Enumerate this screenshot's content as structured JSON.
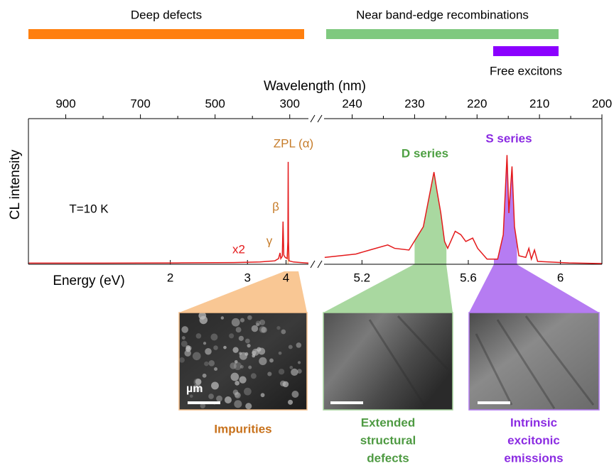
{
  "chart_data": {
    "type": "line",
    "x_label": "Wavelength (nm)",
    "x2_label": "Energy (eV)",
    "y_label": "CL intensity",
    "ylim": [
      0,
      1.28
    ],
    "color": "#e41a1c",
    "panels": [
      {
        "xlim": [
          1000,
          250
        ],
        "xticks": [
          900,
          700,
          500,
          300
        ],
        "xminor": [
          800,
          600,
          400
        ],
        "energy_ticks": [
          2,
          3,
          4
        ],
        "x": [
          1000,
          800,
          600,
          450,
          380,
          340,
          330,
          326,
          324,
          320,
          318,
          316,
          312,
          307,
          305,
          304.2,
          303.4,
          302,
          290,
          270,
          250
        ],
        "values": [
          0.01,
          0.01,
          0.012,
          0.015,
          0.02,
          0.03,
          0.05,
          0.1,
          0.05,
          0.07,
          0.375,
          0.08,
          0.06,
          0.05,
          0.2,
          0.9,
          0.2,
          0.03,
          0.02,
          0.015,
          0.01
        ]
      },
      {
        "xlim": [
          244.5,
          200
        ],
        "xticks": [
          240,
          230,
          220,
          210,
          200
        ],
        "xminor": [
          235,
          225,
          215,
          205
        ],
        "energy_ticks": [
          5.2,
          5.6,
          6
        ],
        "x": [
          244.4,
          239.4,
          237.2,
          234.3,
          233.2,
          230.9,
          228.6,
          227.5,
          226.9,
          226.4,
          225.8,
          225.2,
          224.7,
          223.5,
          222.6,
          221.8,
          220.7,
          219.9,
          218.4,
          216.7,
          215.8,
          215.2,
          214.9,
          214.4,
          214.0,
          213.3,
          212.2,
          211.7,
          211.3,
          210.8,
          210.3,
          205.3,
          200
        ],
        "values": [
          0.06,
          0.09,
          0.125,
          0.17,
          0.14,
          0.125,
          0.33,
          0.64,
          0.81,
          0.64,
          0.45,
          0.2,
          0.14,
          0.29,
          0.26,
          0.2,
          0.23,
          0.14,
          0.045,
          0.045,
          0.26,
          0.96,
          0.45,
          0.86,
          0.33,
          0.075,
          0.06,
          0.14,
          0.045,
          0.125,
          0.025,
          0.012,
          0.006
        ]
      }
    ],
    "highlights": [
      {
        "panel": 0,
        "xlim": [
          306,
          303
        ],
        "color": "#f9c28c"
      },
      {
        "panel": 1,
        "xlim": [
          230,
          224.9
        ],
        "color": "#a9d8a0"
      },
      {
        "panel": 1,
        "xlim": [
          217.3,
          213.6
        ],
        "color": "#b67cf2"
      }
    ],
    "annotations": [
      {
        "text": "ZPL (α)",
        "color": "#c67c2a"
      },
      {
        "text": "β",
        "color": "#c67c2a"
      },
      {
        "text": "γ",
        "color": "#c67c2a"
      },
      {
        "text": "x2",
        "color": "#e41a1c"
      },
      {
        "text": "T=10 K",
        "color": "#000000"
      },
      {
        "text": "D series",
        "color": "#4ea043"
      },
      {
        "text": "S series",
        "color": "#8b2be2"
      }
    ]
  },
  "ranges": [
    {
      "label": "Deep defects",
      "color": "#ff7f0e"
    },
    {
      "label": "Near band-edge recombinations",
      "color": "#7fc97f"
    },
    {
      "label": "Free excitons",
      "color": "#8b00ff"
    }
  ],
  "images": [
    {
      "label": [
        "Impurities"
      ],
      "color": "#c8721c",
      "border": "#f6c08c"
    },
    {
      "label": [
        "Extended",
        "structural",
        "defects"
      ],
      "color": "#4e9a42",
      "border": "#a8d59e"
    },
    {
      "label": [
        "Intrinsic",
        "excitonic",
        "emissions"
      ],
      "color": "#8b2be2",
      "border": "#b27af0"
    }
  ],
  "scale_label": "µm"
}
